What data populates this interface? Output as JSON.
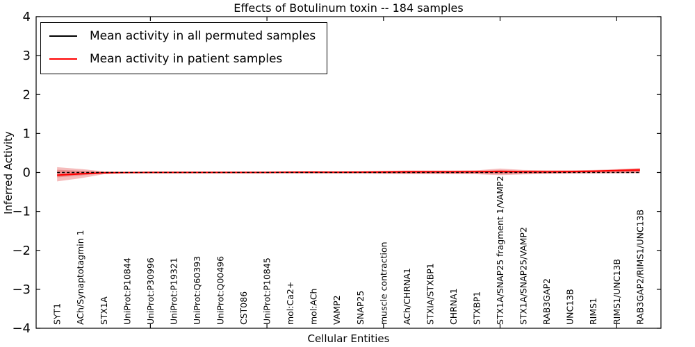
{
  "title": "Effects of Botulinum toxin -- 184 samples",
  "chart_data": {
    "type": "line",
    "title": "Effects of Botulinum toxin -- 184 samples",
    "xlabel": "Cellular Entities",
    "ylabel": "Inferred Activity",
    "ylim": [
      -4,
      4
    ],
    "xlim": [
      0.1,
      26.9
    ],
    "grid": false,
    "legend_position": "upper left",
    "y_ticks": [
      {
        "value": 4,
        "label": "4"
      },
      {
        "value": 3,
        "label": "3"
      },
      {
        "value": 2,
        "label": "2"
      },
      {
        "value": 1,
        "label": "1"
      },
      {
        "value": 0,
        "label": "0"
      },
      {
        "value": -1,
        "label": "−1"
      },
      {
        "value": -2,
        "label": "−2"
      },
      {
        "value": -3,
        "label": "−3"
      },
      {
        "value": -4,
        "label": "−4"
      }
    ],
    "x_major_tick_values": [
      5,
      10,
      15,
      20,
      25
    ],
    "categories": [
      "SYT1",
      "ACh/Synaptotagmin 1",
      "STX1A",
      "UniProt:P10844",
      "UniProt:P30996",
      "UniProt:P19321",
      "UniProt:Q60393",
      "UniProt:Q00496",
      "CST086",
      "UniProt:P10845",
      "mol:Ca2+",
      "mol:ACh",
      "VAMP2",
      "SNAP25",
      "muscle contraction",
      "ACh/CHRNA1",
      "STXIA/STXBP1",
      "CHRNA1",
      "STXBP1",
      "STX1A/SNAP25 fragment 1/VAMP2",
      "STX1A/SNAP25/VAMP2",
      "RAB3GAP2",
      "UNC13B",
      "RIMS1",
      "RIMS1/UNC13B",
      "RAB3GAP2/RIMS1/UNC13B"
    ],
    "series": [
      {
        "name": "Mean activity in all permuted samples",
        "color": "#000000",
        "style": "dashed",
        "dash": "4 3",
        "width": 1.5,
        "values": [
          0,
          0,
          0,
          0,
          0,
          0,
          0,
          0,
          0,
          0,
          0,
          0,
          0,
          0,
          0,
          0,
          0,
          0,
          0,
          0,
          0,
          0,
          0,
          0,
          0,
          0
        ]
      },
      {
        "name": "Mean activity in patient samples",
        "color": "#ff0000",
        "style": "solid",
        "dash": "",
        "width": 2.2,
        "values": [
          -0.07,
          -0.035,
          -0.01,
          -0.003,
          0,
          0,
          0,
          0,
          0,
          0,
          0.004,
          0.008,
          0.005,
          0.008,
          0.012,
          0.018,
          0.018,
          0.018,
          0.02,
          0.025,
          0.02,
          0.018,
          0.022,
          0.032,
          0.05,
          0.065
        ]
      }
    ],
    "bands": [
      {
        "name": "outer-confidence-band",
        "color": "#f5bcbc",
        "upper": [
          0.135,
          0.09,
          0.03,
          0.015,
          0.012,
          0.012,
          0.012,
          0.012,
          0.012,
          0.012,
          0.02,
          0.03,
          0.022,
          0.028,
          0.04,
          0.05,
          0.05,
          0.05,
          0.055,
          0.1,
          0.065,
          0.055,
          0.055,
          0.065,
          0.085,
          0.115
        ],
        "lower": [
          -0.23,
          -0.15,
          -0.045,
          -0.018,
          -0.012,
          -0.012,
          -0.012,
          -0.012,
          -0.012,
          -0.012,
          -0.022,
          -0.032,
          -0.024,
          -0.03,
          -0.04,
          -0.045,
          -0.045,
          -0.045,
          -0.045,
          -0.07,
          -0.05,
          -0.04,
          -0.032,
          -0.028,
          -0.025,
          -0.02
        ]
      },
      {
        "name": "inner-confidence-band",
        "color": "#eb8e8e",
        "upper": [
          0.07,
          0.045,
          0.015,
          0.008,
          0.006,
          0.006,
          0.006,
          0.006,
          0.006,
          0.006,
          0.01,
          0.015,
          0.011,
          0.014,
          0.02,
          0.028,
          0.028,
          0.028,
          0.03,
          0.06,
          0.038,
          0.032,
          0.034,
          0.042,
          0.058,
          0.078
        ],
        "lower": [
          -0.125,
          -0.08,
          -0.022,
          -0.009,
          -0.006,
          -0.006,
          -0.006,
          -0.006,
          -0.006,
          -0.006,
          -0.011,
          -0.016,
          -0.012,
          -0.015,
          -0.022,
          -0.026,
          -0.026,
          -0.026,
          -0.026,
          -0.042,
          -0.03,
          -0.022,
          -0.018,
          -0.014,
          -0.012,
          -0.008
        ]
      }
    ]
  }
}
